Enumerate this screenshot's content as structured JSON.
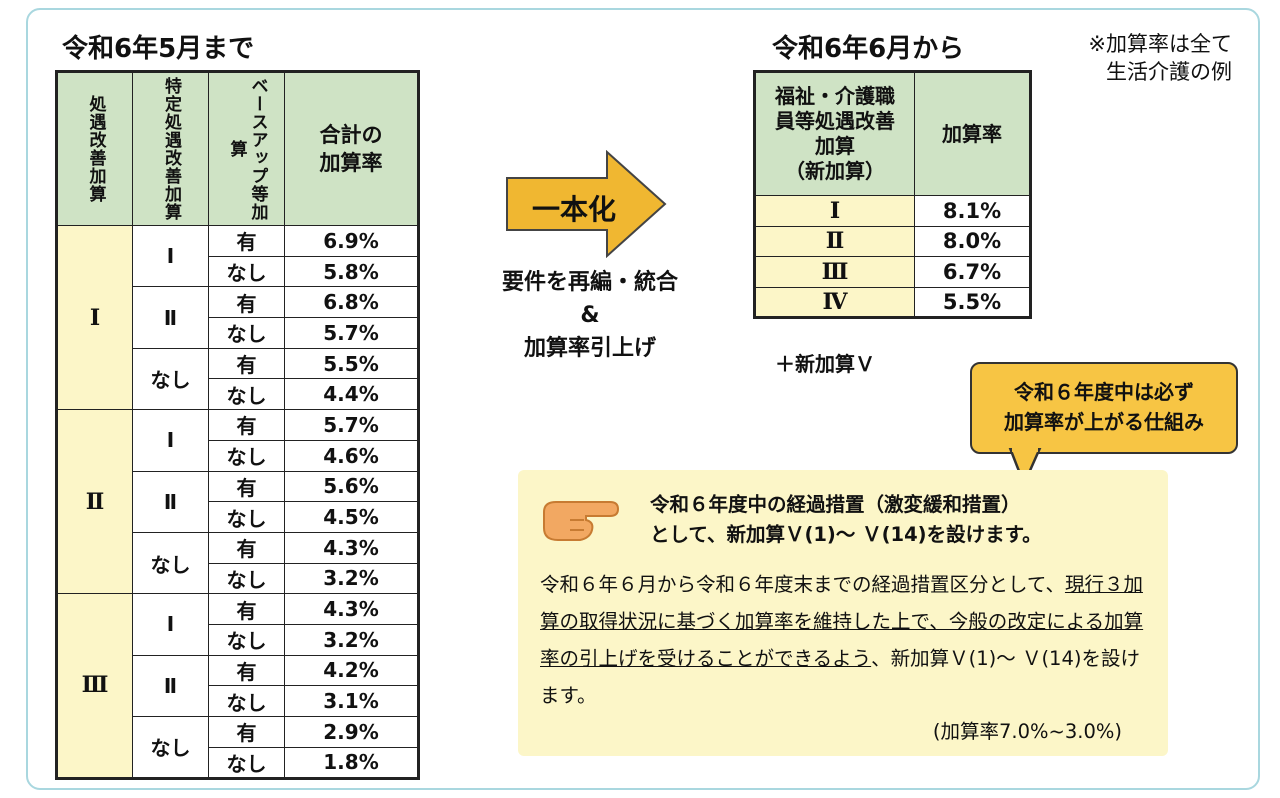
{
  "left": {
    "title": "令和6年5月まで",
    "headers": [
      "処遇改善加算",
      "特定処遇改善加算",
      "ベースアップ等加算",
      "合計の加算率"
    ],
    "groups": [
      {
        "level": "Ⅰ",
        "subs": [
          {
            "spec": "Ⅰ",
            "rows": [
              {
                "base": "有",
                "rate": "6.9%"
              },
              {
                "base": "なし",
                "rate": "5.8%"
              }
            ]
          },
          {
            "spec": "Ⅱ",
            "rows": [
              {
                "base": "有",
                "rate": "6.8%"
              },
              {
                "base": "なし",
                "rate": "5.7%"
              }
            ]
          },
          {
            "spec": "なし",
            "rows": [
              {
                "base": "有",
                "rate": "5.5%"
              },
              {
                "base": "なし",
                "rate": "4.4%"
              }
            ]
          }
        ]
      },
      {
        "level": "Ⅱ",
        "subs": [
          {
            "spec": "Ⅰ",
            "rows": [
              {
                "base": "有",
                "rate": "5.7%"
              },
              {
                "base": "なし",
                "rate": "4.6%"
              }
            ]
          },
          {
            "spec": "Ⅱ",
            "rows": [
              {
                "base": "有",
                "rate": "5.6%"
              },
              {
                "base": "なし",
                "rate": "4.5%"
              }
            ]
          },
          {
            "spec": "なし",
            "rows": [
              {
                "base": "有",
                "rate": "4.3%"
              },
              {
                "base": "なし",
                "rate": "3.2%"
              }
            ]
          }
        ]
      },
      {
        "level": "Ⅲ",
        "subs": [
          {
            "spec": "Ⅰ",
            "rows": [
              {
                "base": "有",
                "rate": "4.3%"
              },
              {
                "base": "なし",
                "rate": "3.2%"
              }
            ]
          },
          {
            "spec": "Ⅱ",
            "rows": [
              {
                "base": "有",
                "rate": "4.2%"
              },
              {
                "base": "なし",
                "rate": "3.1%"
              }
            ]
          },
          {
            "spec": "なし",
            "rows": [
              {
                "base": "有",
                "rate": "2.9%"
              },
              {
                "base": "なし",
                "rate": "1.8%"
              }
            ]
          }
        ]
      }
    ]
  },
  "arrow": {
    "label": "一本化",
    "text_lines": [
      "要件を再編・統合",
      "&",
      "加算率引上げ"
    ]
  },
  "right": {
    "title": "令和6年6月から",
    "note_lines": [
      "※加算率は全て",
      "生活介護の例"
    ],
    "header_lines": [
      "福祉・介護職",
      "員等処遇改善",
      "加算",
      "（新加算）"
    ],
    "rate_header": "加算率",
    "rows": [
      {
        "level": "Ⅰ",
        "rate": "8.1%"
      },
      {
        "level": "Ⅱ",
        "rate": "8.0%"
      },
      {
        "level": "Ⅲ",
        "rate": "6.7%"
      },
      {
        "level": "Ⅳ",
        "rate": "5.5%"
      }
    ],
    "plus": "＋新加算Ｖ"
  },
  "callout": {
    "lines": [
      "令和６年度中は必ず",
      "加算率が上がる仕組み"
    ]
  },
  "info": {
    "title_lines": [
      "令和６年度中の経過措置（激変緩和措置）",
      "として、新加算Ｖ(1)～ Ｖ(14)を設けます。"
    ],
    "body_plain_1": "令和６年６月から令和６年度末までの経過措置区分とし",
    "body_plain_2": "て、",
    "body_underline": "現行３加算の取得状況に基づく加算率を維持した上で、今般の改定による加算率の引上げを受けることができるよう",
    "body_plain_3": "、新加算Ｖ(1)～ Ｖ(14)を設けます。",
    "sub": "(加算率7.0%~3.0%)"
  },
  "colors": {
    "header_green": "#cfe3c5",
    "level_yellow": "#fcf6c8",
    "arrow_gold": "#f0b731",
    "callout_gold": "#f7c544",
    "frame_blue": "#a9d7df"
  }
}
